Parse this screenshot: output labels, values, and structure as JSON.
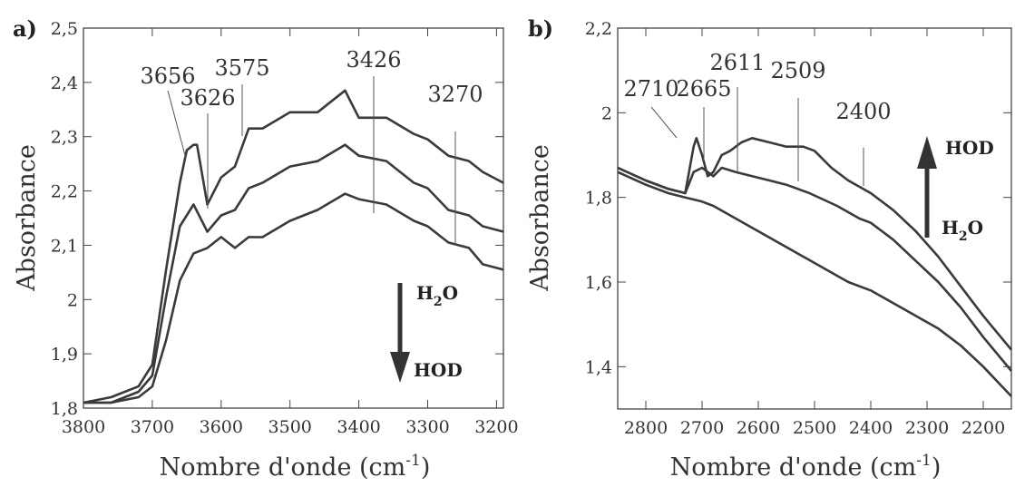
{
  "chart_data": [
    {
      "panel": "a)",
      "type": "line",
      "xlabel": "Nombre d'onde (cm",
      "xlabel_sup": "-1",
      "xlabel_suffix": ")",
      "ylabel": "Absorbance",
      "xlim": [
        3800,
        3190
      ],
      "ylim": [
        1.8,
        2.5
      ],
      "x_ticks": [
        3800,
        3700,
        3600,
        3500,
        3400,
        3300,
        3200
      ],
      "y_ticks": [
        1.8,
        1.9,
        2.0,
        2.1,
        2.2,
        2.3,
        2.4,
        2.5
      ],
      "x_tick_labels": [
        "3800",
        "3700",
        "3600",
        "3500",
        "3400",
        "3300",
        "3200"
      ],
      "y_tick_labels": [
        "1,8",
        "1,9",
        "2",
        "2,1",
        "2,2",
        "2,3",
        "2,4",
        "2,5"
      ],
      "annotations": [
        {
          "text": "3656",
          "x": 3645
        },
        {
          "text": "3626",
          "x": 3620
        },
        {
          "text": "3575",
          "x": 3565
        },
        {
          "text": "3426",
          "x": 3415
        },
        {
          "text": "3270",
          "x": 3260
        }
      ],
      "arrow": {
        "direction": "down",
        "top_label": "H",
        "top_sub": "2",
        "top_suffix": "O",
        "bottom_label": "HOD"
      },
      "series": [
        {
          "x": [
            3800,
            3760,
            3720,
            3700,
            3680,
            3660,
            3650,
            3640,
            3635,
            3620,
            3600,
            3580,
            3560,
            3540,
            3500,
            3460,
            3420,
            3400,
            3360,
            3320,
            3300,
            3270,
            3240,
            3220,
            3190
          ],
          "y": [
            1.81,
            1.82,
            1.84,
            1.88,
            2.05,
            2.22,
            2.27,
            2.29,
            2.28,
            2.18,
            2.22,
            2.25,
            2.31,
            2.32,
            2.34,
            2.35,
            2.38,
            2.34,
            2.33,
            2.31,
            2.29,
            2.27,
            2.25,
            2.24,
            2.21
          ]
        },
        {
          "x": [
            3800,
            3760,
            3720,
            3700,
            3680,
            3660,
            3640,
            3620,
            3600,
            3580,
            3560,
            3540,
            3500,
            3460,
            3420,
            3400,
            3360,
            3320,
            3300,
            3270,
            3240,
            3220,
            3190
          ],
          "y": [
            1.81,
            1.81,
            1.83,
            1.86,
            2.0,
            2.14,
            2.17,
            2.13,
            2.15,
            2.17,
            2.2,
            2.22,
            2.24,
            2.26,
            2.28,
            2.27,
            2.25,
            2.22,
            2.2,
            2.17,
            2.15,
            2.14,
            2.12
          ]
        },
        {
          "x": [
            3800,
            3760,
            3720,
            3700,
            3680,
            3660,
            3640,
            3620,
            3600,
            3580,
            3560,
            3540,
            3500,
            3460,
            3420,
            3400,
            3360,
            3320,
            3300,
            3270,
            3240,
            3220,
            3190
          ],
          "y": [
            1.81,
            1.81,
            1.82,
            1.84,
            1.92,
            2.04,
            2.08,
            2.1,
            2.11,
            2.1,
            2.11,
            2.12,
            2.14,
            2.17,
            2.19,
            2.19,
            2.17,
            2.15,
            2.13,
            2.11,
            2.09,
            2.07,
            2.05
          ]
        }
      ]
    },
    {
      "panel": "b)",
      "type": "line",
      "xlabel": "Nombre d'onde (cm",
      "xlabel_sup": "-1",
      "xlabel_suffix": ")",
      "ylabel": "Absorbance",
      "xlim": [
        2850,
        2150
      ],
      "ylim": [
        1.3,
        2.2
      ],
      "x_ticks": [
        2800,
        2700,
        2600,
        2500,
        2400,
        2300,
        2200
      ],
      "y_ticks": [
        1.4,
        1.6,
        1.8,
        2.0,
        2.2
      ],
      "x_tick_labels": [
        "2800",
        "2700",
        "2600",
        "2500",
        "2400",
        "2300",
        "2200"
      ],
      "y_tick_labels": [
        "1,4",
        "1,6",
        "1,8",
        "2",
        "2,2"
      ],
      "annotations": [
        {
          "text": "2710",
          "x": 2710
        },
        {
          "text": "2665",
          "x": 2665
        },
        {
          "text": "2611",
          "x": 2611
        },
        {
          "text": "2509",
          "x": 2509
        },
        {
          "text": "2400",
          "x": 2400
        }
      ],
      "arrow": {
        "direction": "up",
        "top_label": "HOD",
        "bottom_label": "H",
        "bottom_sub": "2",
        "bottom_suffix": "O"
      },
      "series": [
        {
          "x": [
            2850,
            2800,
            2760,
            2730,
            2715,
            2710,
            2700,
            2690,
            2680,
            2665,
            2650,
            2630,
            2611,
            2580,
            2550,
            2520,
            2500,
            2470,
            2440,
            2400,
            2360,
            2320,
            2280,
            2240,
            2200,
            2150
          ],
          "y": [
            1.87,
            1.84,
            1.82,
            1.81,
            1.92,
            1.94,
            1.9,
            1.85,
            1.86,
            1.9,
            1.91,
            1.93,
            1.94,
            1.93,
            1.92,
            1.92,
            1.91,
            1.87,
            1.84,
            1.81,
            1.77,
            1.72,
            1.66,
            1.59,
            1.52,
            1.44
          ]
        },
        {
          "x": [
            2850,
            2800,
            2760,
            2730,
            2715,
            2700,
            2680,
            2665,
            2640,
            2611,
            2580,
            2550,
            2509,
            2460,
            2420,
            2400,
            2360,
            2320,
            2280,
            2240,
            2200,
            2150
          ],
          "y": [
            1.87,
            1.84,
            1.82,
            1.81,
            1.86,
            1.87,
            1.85,
            1.87,
            1.86,
            1.85,
            1.84,
            1.83,
            1.81,
            1.78,
            1.75,
            1.74,
            1.7,
            1.65,
            1.6,
            1.54,
            1.47,
            1.39
          ]
        },
        {
          "x": [
            2850,
            2800,
            2760,
            2730,
            2700,
            2680,
            2640,
            2600,
            2560,
            2520,
            2480,
            2440,
            2400,
            2360,
            2320,
            2280,
            2240,
            2200,
            2150
          ],
          "y": [
            1.86,
            1.83,
            1.81,
            1.8,
            1.79,
            1.78,
            1.75,
            1.72,
            1.69,
            1.66,
            1.63,
            1.6,
            1.58,
            1.55,
            1.52,
            1.49,
            1.45,
            1.4,
            1.33
          ]
        }
      ]
    }
  ]
}
